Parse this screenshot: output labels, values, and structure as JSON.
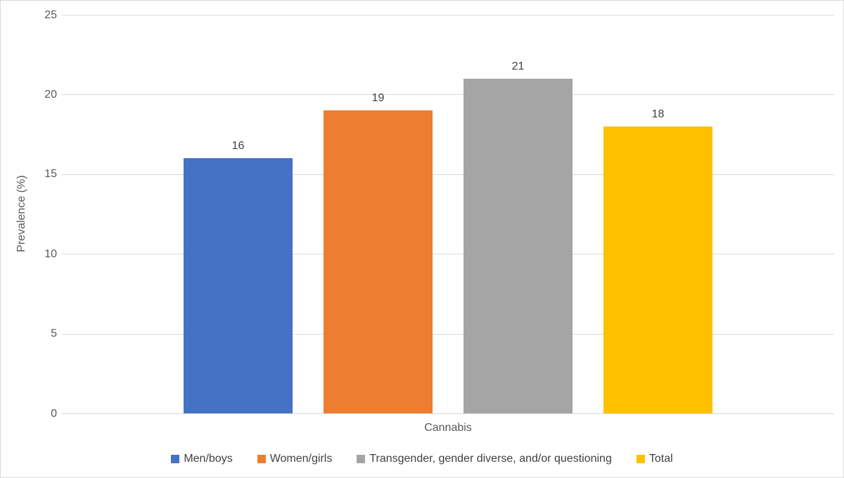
{
  "chart_data": {
    "type": "bar",
    "title": "",
    "categories": [
      "Cannabis"
    ],
    "series": [
      {
        "name": "Men/boys",
        "values": [
          16
        ],
        "color": "#4472C4"
      },
      {
        "name": "Women/girls",
        "values": [
          19
        ],
        "color": "#ED7D31"
      },
      {
        "name": "Transgender, gender diverse, and/or questioning",
        "values": [
          21
        ],
        "color": "#A5A5A5"
      },
      {
        "name": "Total",
        "values": [
          18
        ],
        "color": "#FFC000"
      }
    ],
    "xlabel": "",
    "ylabel": "Prevalence (%)",
    "ylim": [
      0,
      25
    ],
    "yticks": [
      0,
      5,
      10,
      15,
      20,
      25
    ],
    "grid": true,
    "legend_position": "bottom",
    "gridline_color": "#D9D9D9",
    "tick_label_color": "#595959",
    "data_label_color": "#404040"
  }
}
